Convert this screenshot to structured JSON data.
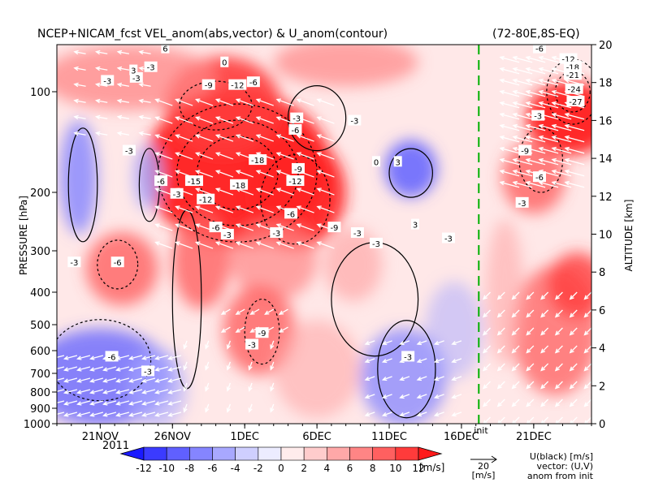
{
  "chart_data": {
    "type": "heatmap",
    "title": "NCEP+NICAM_fcst VEL_anom(abs,vector) & U_anom(contour)",
    "region": "(72-80E,8S-EQ)",
    "ylabel_left": "PRESSURE [hPa]",
    "ylabel_right": "ALTITUDE [km]",
    "year_label": "2011",
    "x_ticks": [
      "21NOV",
      "26NOV",
      "1DEC",
      "6DEC",
      "11DEC",
      "16DEC",
      "21DEC"
    ],
    "x_tick_days": [
      3,
      8,
      13,
      18,
      23,
      28,
      33
    ],
    "x_range_days": [
      0,
      37
    ],
    "pressure_ticks": [
      "100",
      "200",
      "300",
      "400",
      "500",
      "600",
      "700",
      "800",
      "900",
      "1000"
    ],
    "pressure_values": [
      100,
      200,
      300,
      400,
      500,
      600,
      700,
      800,
      900,
      1000
    ],
    "altitude_ticks": [
      "0",
      "2",
      "4",
      "6",
      "8",
      "10",
      "12",
      "14",
      "16",
      "18",
      "20"
    ],
    "altitude_values": [
      0,
      2,
      4,
      6,
      8,
      10,
      12,
      14,
      16,
      18,
      20
    ],
    "init_marker_day": 29.2,
    "init_label": "init",
    "colorbar": {
      "levels": [
        "-12",
        "-10",
        "-8",
        "-6",
        "-4",
        "-2",
        "0",
        "2",
        "4",
        "6",
        "8",
        "10",
        "12"
      ],
      "unit": "[m/s]",
      "negative_colors": [
        "#1a1aff",
        "#3b3bff",
        "#6060ff",
        "#8585ff",
        "#a8a8ff",
        "#cfcfff",
        "#ececff"
      ],
      "positive_colors": [
        "#ffecec",
        "#ffcccc",
        "#ffa8a8",
        "#ff8585",
        "#ff6060",
        "#ff3b3b",
        "#ff1a1a"
      ]
    },
    "vector_ref": {
      "value": "20",
      "unit": "[m/s]"
    },
    "legend_notes": [
      "U(black) [m/s]",
      "vector: (U,V)",
      "anom from init"
    ],
    "contour_labels": [
      {
        "v": "-6",
        "d": 16.5,
        "p": 130
      },
      {
        "v": "-15",
        "d": 9.5,
        "p": 185
      },
      {
        "v": "-18",
        "d": 12.6,
        "p": 190
      },
      {
        "v": "-12",
        "d": 16.5,
        "p": 185
      },
      {
        "v": "-18",
        "d": 13.9,
        "p": 160
      },
      {
        "v": "-9",
        "d": 16.7,
        "p": 170
      },
      {
        "v": "-12",
        "d": 10.3,
        "p": 210
      },
      {
        "v": "-6",
        "d": 16.2,
        "p": 232
      },
      {
        "v": "-9",
        "d": 19.2,
        "p": 255
      },
      {
        "v": "-3",
        "d": 15.2,
        "p": 265
      },
      {
        "v": "-6",
        "d": 11.0,
        "p": 255
      },
      {
        "v": "-3",
        "d": 11.8,
        "p": 268
      },
      {
        "v": "-6",
        "d": 7.2,
        "p": 185
      },
      {
        "v": "-3",
        "d": 8.3,
        "p": 202
      },
      {
        "v": "-9",
        "d": 10.5,
        "p": 95
      },
      {
        "v": "-12",
        "d": 12.5,
        "p": 95
      },
      {
        "v": "-6",
        "d": 13.6,
        "p": 93
      },
      {
        "v": "0",
        "d": 11.6,
        "p": 80
      },
      {
        "v": "-3",
        "d": 16.6,
        "p": 120
      },
      {
        "v": "-3",
        "d": 20.6,
        "p": 122
      },
      {
        "v": "-3",
        "d": 6.5,
        "p": 83
      },
      {
        "v": "-3",
        "d": 5.5,
        "p": 90
      },
      {
        "v": "-3",
        "d": 3.5,
        "p": 92
      },
      {
        "v": "6",
        "d": 7.5,
        "p": 72
      },
      {
        "v": "3",
        "d": 5.3,
        "p": 85
      },
      {
        "v": "-3",
        "d": 5.0,
        "p": 150
      },
      {
        "v": "-6",
        "d": 4.2,
        "p": 325
      },
      {
        "v": "-3",
        "d": 1.2,
        "p": 325
      },
      {
        "v": "-9",
        "d": 14.2,
        "p": 530
      },
      {
        "v": "-3",
        "d": 13.5,
        "p": 575
      },
      {
        "v": "-6",
        "d": 3.8,
        "p": 625
      },
      {
        "v": "-3",
        "d": 6.3,
        "p": 690
      },
      {
        "v": "-3",
        "d": 24.3,
        "p": 625
      },
      {
        "v": "-3",
        "d": 27.1,
        "p": 275
      },
      {
        "v": "-3",
        "d": 22.1,
        "p": 285
      },
      {
        "v": "-3",
        "d": 20.8,
        "p": 265
      },
      {
        "v": "0",
        "d": 22.1,
        "p": 162
      },
      {
        "v": "3",
        "d": 23.6,
        "p": 162
      },
      {
        "v": "3",
        "d": 24.8,
        "p": 250
      },
      {
        "v": "-3",
        "d": 33.3,
        "p": 118
      },
      {
        "v": "-12",
        "d": 35.4,
        "p": 78
      },
      {
        "v": "-18",
        "d": 35.7,
        "p": 83
      },
      {
        "v": "-21",
        "d": 35.7,
        "p": 88
      },
      {
        "v": "-24",
        "d": 35.8,
        "p": 98
      },
      {
        "v": "-27",
        "d": 35.9,
        "p": 107
      },
      {
        "v": "-9",
        "d": 32.4,
        "p": 150
      },
      {
        "v": "-6",
        "d": 33.4,
        "p": 180
      },
      {
        "v": "-3",
        "d": 32.2,
        "p": 215
      },
      {
        "v": "-6",
        "d": 33.4,
        "p": 72
      }
    ]
  }
}
